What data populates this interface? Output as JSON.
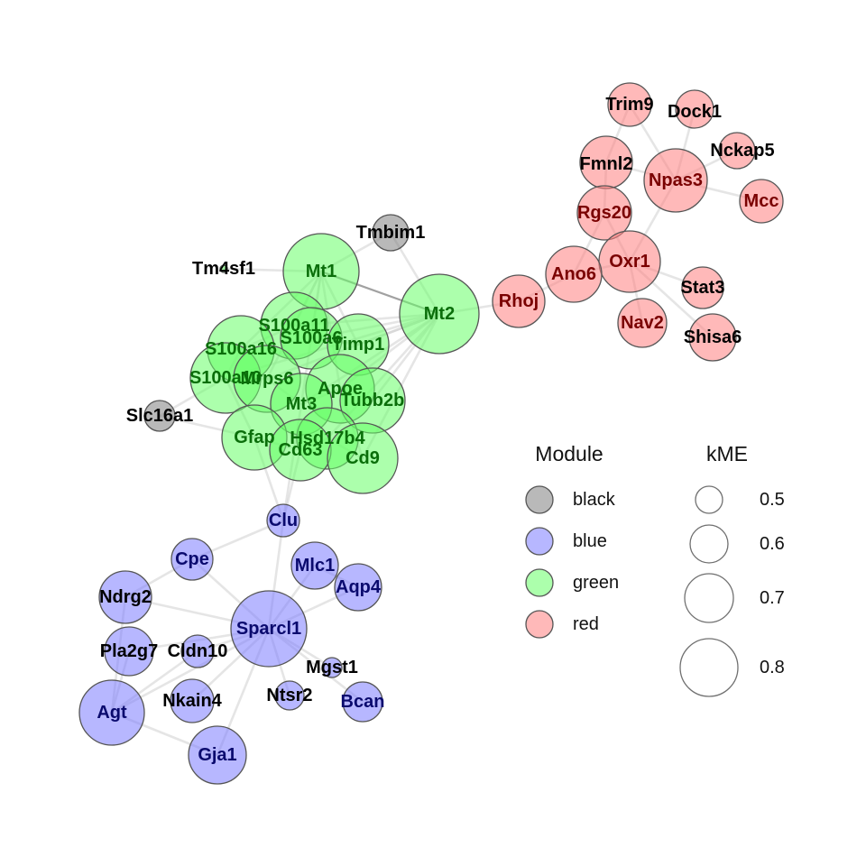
{
  "module_colors": {
    "black": "#7f7f7f",
    "blue": "#7b7bff",
    "green": "#67ff67",
    "red": "#ff7f7f"
  },
  "label_colors": {
    "black": "#000000",
    "blue": "#0a0a6e",
    "green": "#0a6e0a",
    "red": "#7a0000"
  },
  "network": {
    "nodes": [
      {
        "id": "Trim9",
        "module": "red"
      },
      {
        "id": "Dock1",
        "module": "red"
      },
      {
        "id": "Nckap5",
        "module": "red"
      },
      {
        "id": "Fmnl2",
        "module": "red"
      },
      {
        "id": "Npas3",
        "module": "red"
      },
      {
        "id": "Mcc",
        "module": "red"
      },
      {
        "id": "Rgs20",
        "module": "red"
      },
      {
        "id": "Oxr1",
        "module": "red"
      },
      {
        "id": "Ano6",
        "module": "red"
      },
      {
        "id": "Rhoj",
        "module": "red"
      },
      {
        "id": "Stat3",
        "module": "red"
      },
      {
        "id": "Nav2",
        "module": "red"
      },
      {
        "id": "Shisa6",
        "module": "red"
      },
      {
        "id": "Tmbim1",
        "module": "black"
      },
      {
        "id": "Slc16a1",
        "module": "black"
      },
      {
        "id": "Tm4sf1",
        "module": "green"
      },
      {
        "id": "Mt1",
        "module": "green"
      },
      {
        "id": "Mt2",
        "module": "green"
      },
      {
        "id": "S100a11",
        "module": "green"
      },
      {
        "id": "S100a16",
        "module": "green"
      },
      {
        "id": "S100a6",
        "module": "green"
      },
      {
        "id": "Timp1",
        "module": "green"
      },
      {
        "id": "S100a10",
        "module": "green"
      },
      {
        "id": "Mrps6",
        "module": "green"
      },
      {
        "id": "Apoe",
        "module": "green"
      },
      {
        "id": "Tubb2b",
        "module": "green"
      },
      {
        "id": "Mt3",
        "module": "green"
      },
      {
        "id": "Gfap",
        "module": "green"
      },
      {
        "id": "Hsd17b4",
        "module": "green"
      },
      {
        "id": "Cd63",
        "module": "green"
      },
      {
        "id": "Cd9",
        "module": "green"
      },
      {
        "id": "Clu",
        "module": "blue"
      },
      {
        "id": "Cpe",
        "module": "blue"
      },
      {
        "id": "Mlc1",
        "module": "blue"
      },
      {
        "id": "Aqp4",
        "module": "blue"
      },
      {
        "id": "Ndrg2",
        "module": "blue"
      },
      {
        "id": "Sparcl1",
        "module": "blue"
      },
      {
        "id": "Pla2g7",
        "module": "blue"
      },
      {
        "id": "Cldn10",
        "module": "blue"
      },
      {
        "id": "Mgst1",
        "module": "blue"
      },
      {
        "id": "Nkain4",
        "module": "blue"
      },
      {
        "id": "Ntsr2",
        "module": "blue"
      },
      {
        "id": "Bcan",
        "module": "blue"
      },
      {
        "id": "Agt",
        "module": "blue"
      },
      {
        "id": "Gja1",
        "module": "blue"
      }
    ],
    "edges": [
      [
        "Trim9",
        "Fmnl2"
      ],
      [
        "Trim9",
        "Npas3"
      ],
      [
        "Dock1",
        "Npas3"
      ],
      [
        "Nckap5",
        "Npas3"
      ],
      [
        "Npas3",
        "Mcc"
      ],
      [
        "Fmnl2",
        "Rgs20"
      ],
      [
        "Fmnl2",
        "Npas3"
      ],
      [
        "Rgs20",
        "Oxr1"
      ],
      [
        "Npas3",
        "Oxr1"
      ],
      [
        "Oxr1",
        "Ano6"
      ],
      [
        "Oxr1",
        "Stat3"
      ],
      [
        "Oxr1",
        "Nav2"
      ],
      [
        "Oxr1",
        "Shisa6"
      ],
      [
        "Ano6",
        "Rhoj"
      ],
      [
        "Ano6",
        "Rgs20"
      ],
      [
        "Rhoj",
        "Mt2"
      ],
      [
        "Tmbim1",
        "Mt1"
      ],
      [
        "Tmbim1",
        "Mt2"
      ],
      [
        "Tm4sf1",
        "Mt1"
      ],
      [
        "Mt1",
        "Mt2"
      ],
      [
        "Mt1",
        "S100a11"
      ],
      [
        "Mt1",
        "S100a6"
      ],
      [
        "Mt1",
        "Timp1"
      ],
      [
        "Mt1",
        "Mrps6"
      ],
      [
        "Mt1",
        "Mt3"
      ],
      [
        "Mt1",
        "Apoe"
      ],
      [
        "Mt1",
        "S100a16"
      ],
      [
        "Mt2",
        "Timp1"
      ],
      [
        "Mt2",
        "S100a6"
      ],
      [
        "Mt2",
        "Apoe"
      ],
      [
        "Mt2",
        "Tubb2b"
      ],
      [
        "Mt2",
        "Mt3"
      ],
      [
        "Mt2",
        "S100a11"
      ],
      [
        "Mt2",
        "S100a10"
      ],
      [
        "Mt2",
        "Mrps6"
      ],
      [
        "Mt2",
        "Cd9"
      ],
      [
        "Mt2",
        "Hsd17b4"
      ],
      [
        "S100a16",
        "S100a10"
      ],
      [
        "S100a16",
        "S100a11"
      ],
      [
        "S100a10",
        "Mrps6"
      ],
      [
        "S100a10",
        "Gfap"
      ],
      [
        "S100a6",
        "Timp1"
      ],
      [
        "Mrps6",
        "Mt3"
      ],
      [
        "Mt3",
        "Apoe"
      ],
      [
        "Apoe",
        "Tubb2b"
      ],
      [
        "Gfap",
        "Cd63"
      ],
      [
        "Cd63",
        "Hsd17b4"
      ],
      [
        "Hsd17b4",
        "Cd9"
      ],
      [
        "Apoe",
        "Cd9"
      ],
      [
        "Slc16a1",
        "S100a10"
      ],
      [
        "Slc16a1",
        "Gfap"
      ],
      [
        "Gfap",
        "Clu"
      ],
      [
        "Cd63",
        "Clu"
      ],
      [
        "Mt3",
        "Clu"
      ],
      [
        "Clu",
        "Sparcl1"
      ],
      [
        "Clu",
        "Cpe"
      ],
      [
        "Cpe",
        "Ndrg2"
      ],
      [
        "Cpe",
        "Sparcl1"
      ],
      [
        "Mlc1",
        "Sparcl1"
      ],
      [
        "Aqp4",
        "Sparcl1"
      ],
      [
        "Ndrg2",
        "Sparcl1"
      ],
      [
        "Pla2g7",
        "Sparcl1"
      ],
      [
        "Cldn10",
        "Sparcl1"
      ],
      [
        "Mgst1",
        "Sparcl1"
      ],
      [
        "Nkain4",
        "Sparcl1"
      ],
      [
        "Ntsr2",
        "Sparcl1"
      ],
      [
        "Bcan",
        "Sparcl1"
      ],
      [
        "Agt",
        "Sparcl1"
      ],
      [
        "Gja1",
        "Sparcl1"
      ],
      [
        "Agt",
        "Gja1"
      ],
      [
        "Agt",
        "Ndrg2"
      ],
      [
        "Agt",
        "Pla2g7"
      ],
      [
        "Agt",
        "Cldn10"
      ],
      [
        "Mlc1",
        "Aqp4"
      ]
    ]
  },
  "legend": {
    "module_title": "Module",
    "modules": [
      {
        "label": "black",
        "module": "black"
      },
      {
        "label": "blue",
        "module": "blue"
      },
      {
        "label": "green",
        "module": "green"
      },
      {
        "label": "red",
        "module": "red"
      }
    ],
    "kme_title": "kME",
    "kme_sizes": [
      {
        "label": "0.5",
        "value": 0.5
      },
      {
        "label": "0.6",
        "value": 0.6
      },
      {
        "label": "0.7",
        "value": 0.7
      },
      {
        "label": "0.8",
        "value": 0.8
      }
    ]
  }
}
